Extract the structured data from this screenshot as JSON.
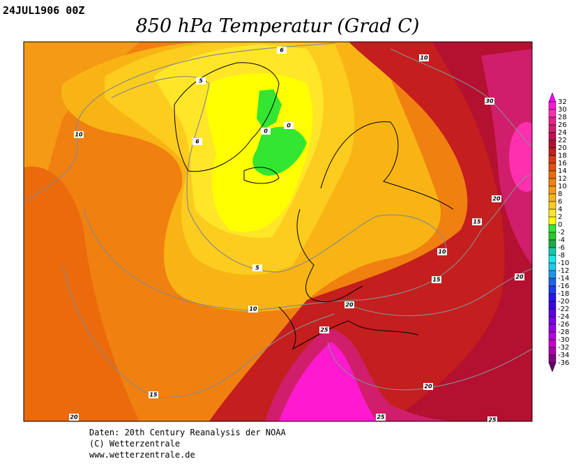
{
  "header": {
    "date": "24JUL1906 00Z",
    "title": "850 hPa Temperatur (Grad C)"
  },
  "colorbar": {
    "levels": [
      32,
      30,
      28,
      26,
      24,
      22,
      20,
      18,
      16,
      14,
      12,
      10,
      8,
      6,
      4,
      2,
      0,
      -2,
      -4,
      -6,
      -8,
      -10,
      -12,
      -14,
      -16,
      -18,
      -20,
      -22,
      -24,
      -26,
      -28,
      -30,
      -32,
      -34,
      -36
    ],
    "colors": [
      "#ff00ff",
      "#ff1ad0",
      "#ff30b0",
      "#e8208c",
      "#d01e6c",
      "#c01050",
      "#b41030",
      "#c41e1e",
      "#d23c14",
      "#e05010",
      "#ea6a0c",
      "#f08010",
      "#f59a14",
      "#f8b414",
      "#fccc1e",
      "#ffe628",
      "#ffff00",
      "#32e632",
      "#28c828",
      "#1eaa46",
      "#14c8aa",
      "#1ee6e6",
      "#1ec8e6",
      "#1e96e6",
      "#1e64e6",
      "#1e3cf0",
      "#2814f0",
      "#3c00e6",
      "#5a00e6",
      "#7800e6",
      "#9600e6",
      "#b400dc",
      "#c800c8",
      "#aa00aa",
      "#820082",
      "#640064"
    ]
  },
  "map": {
    "contour_labels": [
      6,
      10,
      5,
      30,
      0,
      0,
      10,
      6,
      20,
      15,
      10,
      5,
      15,
      20,
      10,
      20,
      25,
      20,
      15,
      20,
      25,
      25
    ]
  },
  "footer": {
    "lines": [
      "Daten: 20th Century Reanalysis der NOAA",
      "(C) Wetterzentrale",
      "www.wetterzentrale.de"
    ]
  }
}
